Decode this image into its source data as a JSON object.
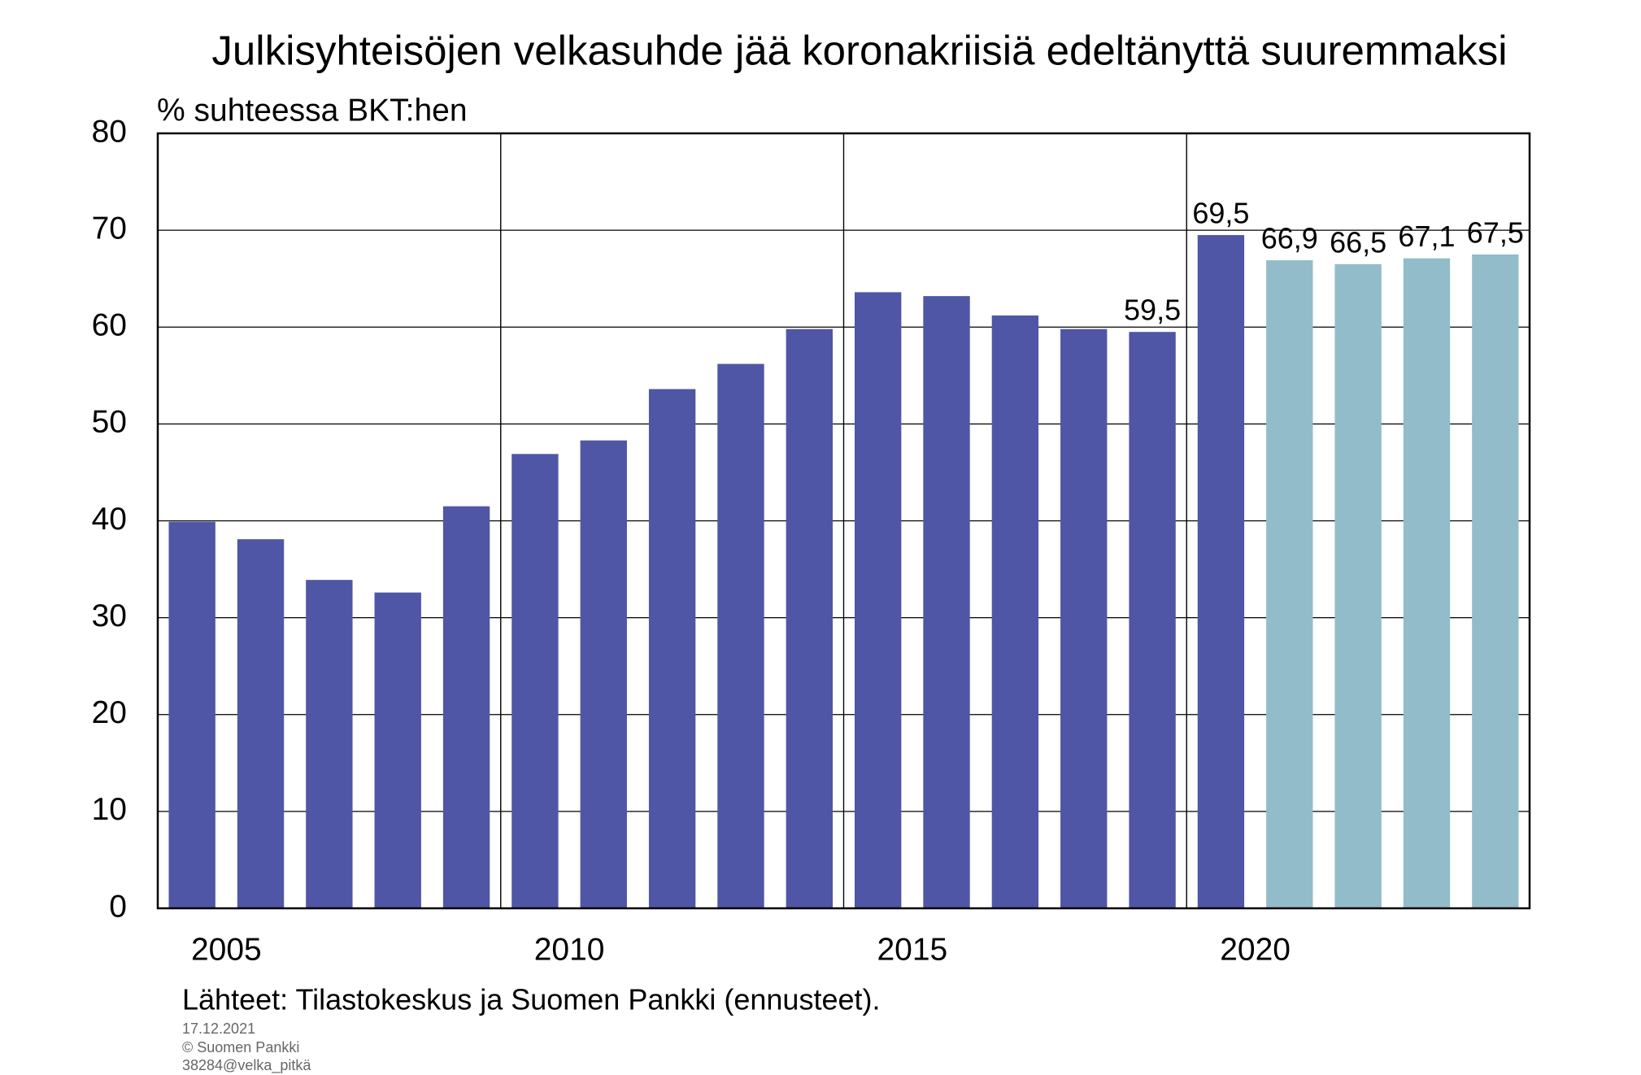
{
  "chart_data": {
    "type": "bar",
    "title": "Julkisyhteisöjen velkasuhde jää koronakriisiä edeltänyttä suuremmaksi",
    "subtitle": "% suhteessa BKT:hen",
    "source": "Lähteet: Tilastokeskus ja Suomen Pankki (ennusteet).",
    "footnotes": [
      "17.12.2021",
      "© Suomen Pankki",
      "38284@velka_pitkä"
    ],
    "categories": [
      "2005",
      null,
      null,
      null,
      null,
      "2010",
      null,
      null,
      null,
      null,
      "2015",
      null,
      null,
      null,
      null,
      "2020",
      null,
      null,
      null,
      null
    ],
    "values": [
      39.9,
      38.1,
      33.9,
      32.6,
      41.5,
      46.9,
      48.3,
      53.6,
      56.2,
      59.8,
      63.6,
      63.2,
      61.2,
      59.8,
      59.5,
      69.5,
      66.9,
      66.5,
      67.1,
      67.5
    ],
    "value_labels": [
      null,
      null,
      null,
      null,
      null,
      null,
      null,
      null,
      null,
      null,
      null,
      null,
      null,
      null,
      "59,5",
      "69,5",
      "66,9",
      "66,5",
      "67,1",
      "67,5"
    ],
    "colors": [
      "#4f56a5",
      "#4f56a5",
      "#4f56a5",
      "#4f56a5",
      "#4f56a5",
      "#4f56a5",
      "#4f56a5",
      "#4f56a5",
      "#4f56a5",
      "#4f56a5",
      "#4f56a5",
      "#4f56a5",
      "#4f56a5",
      "#4f56a5",
      "#4f56a5",
      "#4f56a5",
      "#92bcc9",
      "#92bcc9",
      "#92bcc9",
      "#92bcc9"
    ],
    "ylim": [
      0,
      80
    ],
    "yticks": [
      0,
      10,
      20,
      30,
      40,
      50,
      60,
      70,
      80
    ],
    "grid": true
  }
}
